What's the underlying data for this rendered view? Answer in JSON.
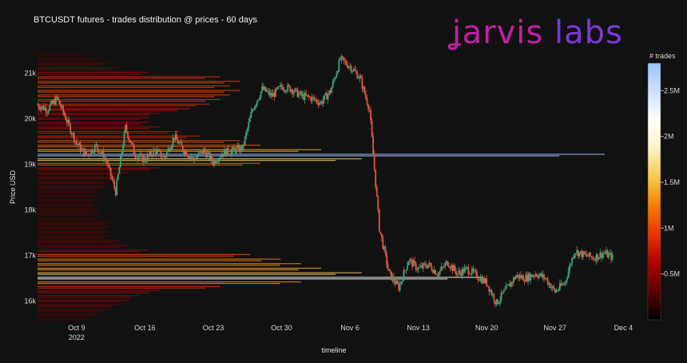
{
  "title": "BTCUSDT futures - trades distribution @ prices - 60 days",
  "logo": {
    "word1": "jarvis",
    "word2": "labs",
    "color1": "#c21fa6",
    "color2": "#7d38d8"
  },
  "chart_data": {
    "type": "line",
    "xlabel": "timeline",
    "ylabel": "Price USD",
    "x_ticks": [
      {
        "label": "Oct 9",
        "sub": "2022",
        "day": 0
      },
      {
        "label": "Oct 16",
        "sub": "",
        "day": 7
      },
      {
        "label": "Oct 23",
        "sub": "",
        "day": 14
      },
      {
        "label": "Oct 30",
        "sub": "",
        "day": 21
      },
      {
        "label": "Nov 6",
        "sub": "",
        "day": 28
      },
      {
        "label": "Nov 13",
        "sub": "",
        "day": 35
      },
      {
        "label": "Nov 20",
        "sub": "",
        "day": 42
      },
      {
        "label": "Nov 27",
        "sub": "",
        "day": 49
      },
      {
        "label": "Dec 4",
        "sub": "",
        "day": 56
      }
    ],
    "xlim_days": [
      -4,
      57.2
    ],
    "y_ticks": [
      {
        "label": "16k",
        "value": 16000
      },
      {
        "label": "17k",
        "value": 17000
      },
      {
        "label": "18k",
        "value": 18000
      },
      {
        "label": "19k",
        "value": 19000
      },
      {
        "label": "20k",
        "value": 20000
      },
      {
        "label": "21k",
        "value": 21000
      }
    ],
    "ylim": [
      15550,
      21550
    ],
    "grid": false,
    "colorbar": {
      "title": "# trades",
      "ticks": [
        {
          "label": "0.5M",
          "value": 0.5
        },
        {
          "label": "1M",
          "value": 1.0
        },
        {
          "label": "1.5M",
          "value": 1.5
        },
        {
          "label": "2M",
          "value": 2.0
        },
        {
          "label": "2.5M",
          "value": 2.5
        }
      ],
      "range": [
        0,
        2.8
      ],
      "colors": [
        "#000000",
        "#5a0000",
        "#b10000",
        "#e63400",
        "#f57d00",
        "#f7c94a",
        "#fbf3c4",
        "#ffffff",
        "#cfe0ff",
        "#9cc6ff"
      ]
    },
    "price_path": [
      {
        "day": -4,
        "price": 20300
      },
      {
        "day": -3,
        "price": 20200
      },
      {
        "day": -2,
        "price": 20450
      },
      {
        "day": -1,
        "price": 19950
      },
      {
        "day": 0,
        "price": 19450
      },
      {
        "day": 1,
        "price": 19200
      },
      {
        "day": 2,
        "price": 19400
      },
      {
        "day": 3,
        "price": 19100
      },
      {
        "day": 4,
        "price": 18400
      },
      {
        "day": 5,
        "price": 19800
      },
      {
        "day": 6,
        "price": 19200
      },
      {
        "day": 7,
        "price": 19100
      },
      {
        "day": 8,
        "price": 19300
      },
      {
        "day": 9,
        "price": 19150
      },
      {
        "day": 10,
        "price": 19600
      },
      {
        "day": 11,
        "price": 19300
      },
      {
        "day": 12,
        "price": 19100
      },
      {
        "day": 13,
        "price": 19300
      },
      {
        "day": 14,
        "price": 19050
      },
      {
        "day": 15,
        "price": 19250
      },
      {
        "day": 16,
        "price": 19300
      },
      {
        "day": 17,
        "price": 19350
      },
      {
        "day": 18,
        "price": 20200
      },
      {
        "day": 19,
        "price": 20650
      },
      {
        "day": 20,
        "price": 20500
      },
      {
        "day": 21,
        "price": 20700
      },
      {
        "day": 22,
        "price": 20650
      },
      {
        "day": 23,
        "price": 20500
      },
      {
        "day": 24,
        "price": 20450
      },
      {
        "day": 25,
        "price": 20350
      },
      {
        "day": 26,
        "price": 20600
      },
      {
        "day": 27,
        "price": 21300
      },
      {
        "day": 28,
        "price": 21150
      },
      {
        "day": 29,
        "price": 20900
      },
      {
        "day": 30,
        "price": 20200
      },
      {
        "day": 31,
        "price": 17600
      },
      {
        "day": 32,
        "price": 16600
      },
      {
        "day": 33,
        "price": 16300
      },
      {
        "day": 34,
        "price": 16900
      },
      {
        "day": 35,
        "price": 16700
      },
      {
        "day": 36,
        "price": 16800
      },
      {
        "day": 37,
        "price": 16600
      },
      {
        "day": 38,
        "price": 16850
      },
      {
        "day": 39,
        "price": 16600
      },
      {
        "day": 40,
        "price": 16700
      },
      {
        "day": 41,
        "price": 16550
      },
      {
        "day": 42,
        "price": 16400
      },
      {
        "day": 43,
        "price": 15950
      },
      {
        "day": 44,
        "price": 16250
      },
      {
        "day": 45,
        "price": 16550
      },
      {
        "day": 46,
        "price": 16500
      },
      {
        "day": 47,
        "price": 16600
      },
      {
        "day": 48,
        "price": 16500
      },
      {
        "day": 49,
        "price": 16200
      },
      {
        "day": 50,
        "price": 16400
      },
      {
        "day": 51,
        "price": 17100
      },
      {
        "day": 52,
        "price": 17000
      },
      {
        "day": 53,
        "price": 16950
      },
      {
        "day": 54,
        "price": 17050
      },
      {
        "day": 55,
        "price": 16950
      }
    ],
    "distribution": [
      {
        "price": 21400,
        "trades": 0.25
      },
      {
        "price": 21300,
        "trades": 0.3
      },
      {
        "price": 21200,
        "trades": 0.35
      },
      {
        "price": 21100,
        "trades": 0.4
      },
      {
        "price": 21000,
        "trades": 0.55
      },
      {
        "price": 20900,
        "trades": 0.9
      },
      {
        "price": 20800,
        "trades": 1.0
      },
      {
        "price": 20700,
        "trades": 0.95
      },
      {
        "price": 20600,
        "trades": 1.0
      },
      {
        "price": 20500,
        "trades": 0.95
      },
      {
        "price": 20400,
        "trades": 0.9
      },
      {
        "price": 20300,
        "trades": 0.85
      },
      {
        "price": 20200,
        "trades": 0.75
      },
      {
        "price": 20100,
        "trades": 0.6
      },
      {
        "price": 20000,
        "trades": 0.55
      },
      {
        "price": 19900,
        "trades": 0.55
      },
      {
        "price": 19800,
        "trades": 0.6
      },
      {
        "price": 19700,
        "trades": 0.7
      },
      {
        "price": 19600,
        "trades": 0.8
      },
      {
        "price": 19500,
        "trades": 1.0
      },
      {
        "price": 19400,
        "trades": 1.1
      },
      {
        "price": 19300,
        "trades": 1.4
      },
      {
        "price": 19200,
        "trades": 2.8
      },
      {
        "price": 19100,
        "trades": 1.6
      },
      {
        "price": 19000,
        "trades": 1.1
      },
      {
        "price": 18900,
        "trades": 0.6
      },
      {
        "price": 18800,
        "trades": 0.45
      },
      {
        "price": 18700,
        "trades": 0.4
      },
      {
        "price": 18600,
        "trades": 0.35
      },
      {
        "price": 18500,
        "trades": 0.35
      },
      {
        "price": 18400,
        "trades": 0.3
      },
      {
        "price": 18300,
        "trades": 0.3
      },
      {
        "price": 18200,
        "trades": 0.3
      },
      {
        "price": 18100,
        "trades": 0.3
      },
      {
        "price": 18000,
        "trades": 0.3
      },
      {
        "price": 17900,
        "trades": 0.3
      },
      {
        "price": 17800,
        "trades": 0.3
      },
      {
        "price": 17700,
        "trades": 0.35
      },
      {
        "price": 17600,
        "trades": 0.35
      },
      {
        "price": 17500,
        "trades": 0.35
      },
      {
        "price": 17400,
        "trades": 0.35
      },
      {
        "price": 17300,
        "trades": 0.4
      },
      {
        "price": 17200,
        "trades": 0.45
      },
      {
        "price": 17100,
        "trades": 0.55
      },
      {
        "price": 17000,
        "trades": 1.05
      },
      {
        "price": 16900,
        "trades": 1.2
      },
      {
        "price": 16800,
        "trades": 1.3
      },
      {
        "price": 16700,
        "trades": 1.4
      },
      {
        "price": 16600,
        "trades": 1.6
      },
      {
        "price": 16500,
        "trades": 2.2
      },
      {
        "price": 16400,
        "trades": 1.3
      },
      {
        "price": 16300,
        "trades": 0.9
      },
      {
        "price": 16200,
        "trades": 0.6
      },
      {
        "price": 16100,
        "trades": 0.5
      },
      {
        "price": 16000,
        "trades": 0.45
      },
      {
        "price": 15900,
        "trades": 0.4
      },
      {
        "price": 15800,
        "trades": 0.35
      },
      {
        "price": 15700,
        "trades": 0.3
      },
      {
        "price": 15600,
        "trades": 0.25
      }
    ]
  }
}
